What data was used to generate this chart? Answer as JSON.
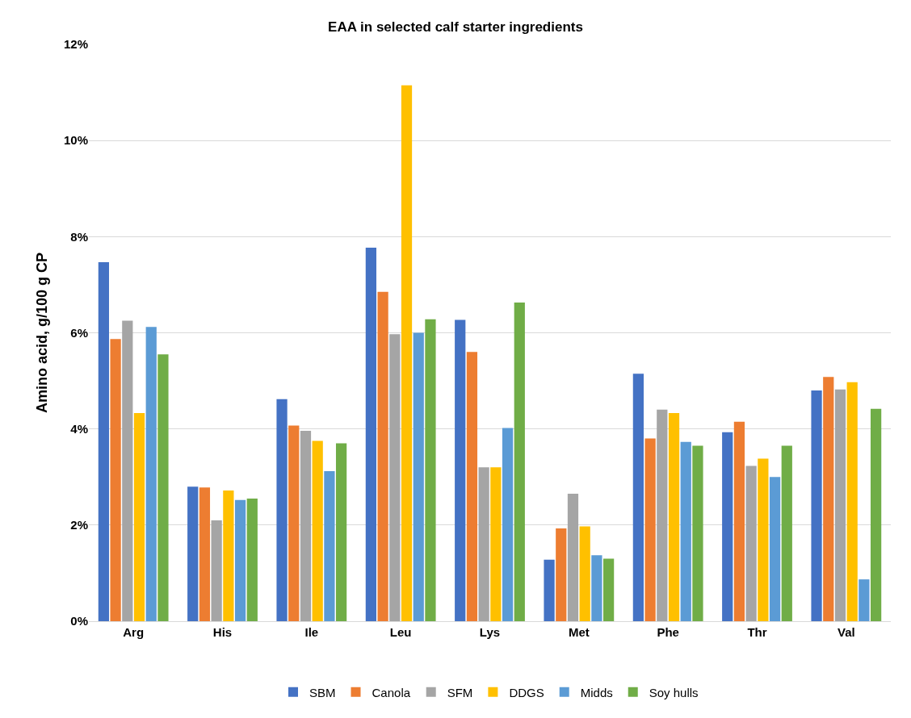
{
  "chart_data": {
    "type": "bar",
    "title": "EAA in selected calf starter ingredients",
    "ylabel": "Amino acid, g/100 g CP",
    "categories": [
      "Arg",
      "His",
      "Ile",
      "Leu",
      "Lys",
      "Met",
      "Phe",
      "Thr",
      "Val"
    ],
    "series": [
      {
        "name": "SBM",
        "color": "#4472c4",
        "values": [
          7.47,
          2.8,
          4.62,
          7.77,
          6.27,
          1.28,
          5.15,
          3.93,
          4.8
        ]
      },
      {
        "name": "Canola",
        "color": "#ed7d31",
        "values": [
          5.87,
          2.78,
          4.07,
          6.85,
          5.6,
          1.93,
          3.8,
          4.15,
          5.08
        ]
      },
      {
        "name": "SFM",
        "color": "#a5a5a5",
        "values": [
          6.25,
          2.1,
          3.96,
          5.97,
          3.2,
          2.65,
          4.4,
          3.23,
          4.82
        ]
      },
      {
        "name": "DDGS",
        "color": "#ffc000",
        "values": [
          4.33,
          2.72,
          3.75,
          11.15,
          3.2,
          1.97,
          4.33,
          3.38,
          4.97
        ]
      },
      {
        "name": "Midds",
        "color": "#5b9bd5",
        "values": [
          6.12,
          2.52,
          3.12,
          6.0,
          4.02,
          1.37,
          3.73,
          3.0,
          0.87
        ]
      },
      {
        "name": "Soy hulls",
        "color": "#70ad47",
        "values": [
          5.55,
          2.55,
          3.7,
          6.28,
          6.63,
          1.3,
          3.65,
          3.65,
          4.42
        ]
      }
    ],
    "ylim": [
      0,
      12
    ],
    "yticks": [
      {
        "value": 0,
        "label": "0%"
      },
      {
        "value": 2,
        "label": "2%"
      },
      {
        "value": 4,
        "label": "4%"
      },
      {
        "value": 6,
        "label": "6%"
      },
      {
        "value": 8,
        "label": "8%"
      },
      {
        "value": 10,
        "label": "10%"
      },
      {
        "value": 12,
        "label": "12%"
      }
    ],
    "grid": "y",
    "legend": "bottom"
  }
}
